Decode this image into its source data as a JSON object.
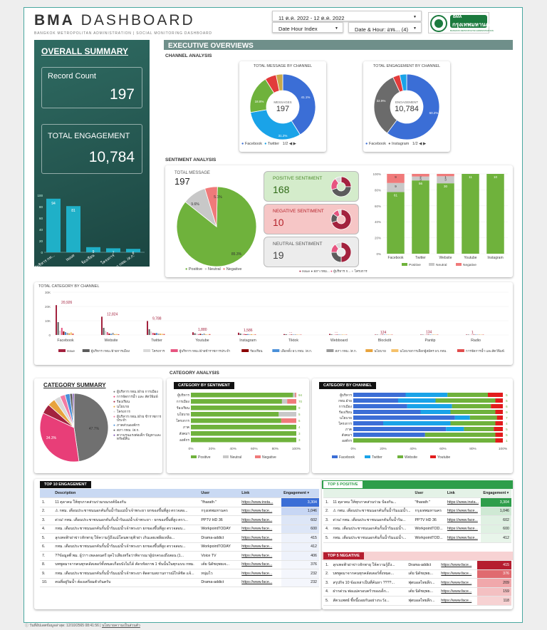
{
  "header": {
    "title_bold": "BMA",
    "title_rest": " DASHBOARD",
    "subtitle": "BANGKOK METROPOLITAN ADMINISTRATION | SOCIAL MONITORING DASHBOARD",
    "date_range": "11 ต.ค. 2022 - 12 ต.ค. 2022",
    "dropdown1": "Date Hour Index",
    "dropdown2": "Date & Hour: อทเ...",
    "dropdown2_count": "(4)",
    "logo_top": "BMA",
    "logo_main": "กรุงเทพมหานคร",
    "logo_sub": "BANGKOK METROPOLITAN ADMINISTRATION"
  },
  "summary": {
    "title": "OVERALL SUMMARY",
    "record_label": "Record Count",
    "record_value": "197",
    "eng_label": "TOTAL ENGAGEMENT",
    "eng_value": "10,784",
    "bars": [
      {
        "label": "ผู้บริหาร กท...",
        "value": 94
      },
      {
        "label": "Issue",
        "value": 81
      },
      {
        "label": "ร้องเรียน",
        "value": 9
      },
      {
        "label": "โครงการ",
        "value": 7
      },
      {
        "label": "สภา กทม. /ส.ก.",
        "value": 6
      }
    ]
  },
  "exec": {
    "title": "EXECUTIVE OVERVIEWS",
    "channel_label": "CHANNEL ANALYSIS",
    "sentiment_label": "SENTIMENT ANALYSIS",
    "category_label": "CATEGORY ANALYSIS"
  },
  "msg_donut": {
    "title": "TOTAL MESSAGE BY CHANNEL",
    "center_label": "MESSAGES",
    "center_value": "197",
    "slices": [
      {
        "name": "Facebook",
        "pct": 41.1,
        "color": "#3b6ed6"
      },
      {
        "name": "Twitter",
        "pct": 31.2,
        "color": "#1aa3e8"
      },
      {
        "name": "Website",
        "pct": 18.8,
        "color": "#6fb23c"
      },
      {
        "name": "Other1",
        "pct": 5.6,
        "color": "#e23b3b"
      },
      {
        "name": "Other2",
        "pct": 3.3,
        "color": "#c8a94a"
      }
    ],
    "labels": [
      "41.1%",
      "31.2%",
      "18.8%"
    ],
    "legend": [
      "Facebook",
      "Twitter"
    ],
    "pager": "1/2"
  },
  "eng_donut": {
    "title": "TOTAL ENGAGEMENT BY CHANNEL",
    "center_label": "ENGAGEMENT",
    "center_value": "10,784",
    "slices": [
      {
        "name": "Facebook",
        "pct": 60.2,
        "color": "#3b6ed6"
      },
      {
        "name": "Instagram",
        "pct": 32.9,
        "color": "#6b6b6b"
      },
      {
        "name": "Other1",
        "pct": 3.5,
        "color": "#e23b3b"
      },
      {
        "name": "Other2",
        "pct": 3.4,
        "color": "#1aa3e8"
      }
    ],
    "labels": [
      "60.2%",
      "32.9%"
    ],
    "legend": [
      "Facebook",
      "Instagram"
    ],
    "pager": "1/2"
  },
  "sentiment": {
    "total_label": "TOTAL MESSAGE",
    "total_value": "197",
    "pie": [
      {
        "name": "Positive",
        "pct": 85.3,
        "color": "#6fb23c"
      },
      {
        "name": "Neutral",
        "pct": 9.6,
        "color": "#c8c8c8"
      },
      {
        "name": "Negative",
        "pct": 5.1,
        "color": "#f07a7a"
      }
    ],
    "pie_labels": [
      "85.3%",
      "9.6%",
      "5.1%"
    ],
    "legend": [
      "Positive",
      "Neutral",
      "Negative"
    ],
    "positive_label": "POSITIVE SENTIMENT",
    "positive_value": "168",
    "negative_label": "NEGATIVE SENTIMENT",
    "negative_value": "10",
    "neutral_label": "NEUTRAL SENTIMENT",
    "neutral_value": "19",
    "mini_legend": [
      "Issue",
      "สภา กทม...",
      "ผู้บริหาร ก...",
      "โครงการ"
    ],
    "mini_colors": [
      "#a3223e",
      "#5c5c5c",
      "#e75480",
      "#d9d9d9"
    ]
  },
  "stacked_channel": {
    "categories": [
      "Facebook",
      "Twitter",
      "Website",
      "Youtube",
      "Instagram"
    ],
    "positive": [
      61,
      56,
      30,
      11,
      10
    ],
    "neutral": [
      9,
      3,
      3,
      0,
      0
    ],
    "negative": [
      9,
      2,
      1,
      0,
      0
    ],
    "yticks": [
      "100%",
      "80%",
      "60%",
      "40%",
      "20%",
      "0%"
    ],
    "legend": [
      "Positive",
      "Neutral",
      "Negative"
    ]
  },
  "total_category": {
    "title": "TOTAL CATEGORY BY CHANNEL",
    "yticks": [
      "30K",
      "20K",
      "10K",
      "0"
    ],
    "channels": [
      "Facebook",
      "Website",
      "Twitter",
      "Youtube",
      "Instagram",
      "Tiktok",
      "Webboard",
      "Blockdit",
      "Pantip",
      "Radio"
    ],
    "top_labels": [
      "20,926",
      "12,824",
      "9,788",
      "1,880",
      "1,586",
      "...",
      "...",
      "124",
      "134",
      "1"
    ],
    "legend": [
      {
        "name": "Issue",
        "color": "#a3223e"
      },
      {
        "name": "ผู้บริหาร กทม./ฝ่ายการเมือง",
        "color": "#5c5c5c"
      },
      {
        "name": "โครงการ",
        "color": "#d9d9d9"
      },
      {
        "name": "ผู้บริหาร กทม./ฝ่ายข้าราชการประจำ",
        "color": "#e75480"
      },
      {
        "name": "ร้องเรียน",
        "color": "#8b0000"
      },
      {
        "name": "เลือกตั้ง ผว.กทม. /ส.ก.",
        "color": "#4a90d9"
      },
      {
        "name": "สภา กทม. /ส.ก.",
        "color": "#999999"
      },
      {
        "name": "นโยบาย",
        "color": "#e8a33d"
      },
      {
        "name": "นโยบายการเลือกผู้สมัคร ผว.กทม.",
        "color": "#f5c16b"
      },
      {
        "name": "การจัดการน้ำ และสัตว์พิมพ์",
        "color": "#e14c4c"
      }
    ]
  },
  "category_summary": {
    "title": "CATEGORY SUMMARY",
    "pie": [
      {
        "name": "ผู้บริหาร กทม./ฝ่ายการเมือง",
        "pct": 47.7,
        "color": "#707070"
      },
      {
        "name": "การจัดการน้ำ และสัตว์พิมพ์",
        "pct": 34.3,
        "color": "#e83e78"
      },
      {
        "name": "ร้องเรียน",
        "pct": 4.6,
        "color": "#a3223e"
      },
      {
        "name": "นโยบาย",
        "pct": 3.6,
        "color": "#e8a33d"
      },
      {
        "name": "โครงการ",
        "pct": 3.0,
        "color": "#d9d9d9"
      },
      {
        "name": "ผู้บริหาร กทม./ฝ่ายข้าราชการประจำ",
        "pct": 2.5,
        "color": "#f27aa3"
      },
      {
        "name": "ภาคส่วนองค์กร",
        "pct": 2.3,
        "color": "#4a90d9"
      },
      {
        "name": "สภา กทม. /ส.ก.",
        "pct": 1.2,
        "color": "#555"
      },
      {
        "name": "ความรุนแรงในครอบครัว",
        "pct": 0.8,
        "color": "#7a4fb3"
      }
    ],
    "pie_labels": [
      "47.7%",
      "34.3%"
    ],
    "legend": [
      "ผู้บริหาร กทม./ฝ่าย การเมือง",
      "การจัดการน้ำ และ สัตว์พิมพ์",
      "ร้องเรียน",
      "นโยบาย",
      "โครงการ",
      "ผู้บริหาร กทม./ฝ่าย ข้าราชการประจำ",
      "ภาคส่วนองค์กร",
      "สภา กทม. /ส.ก.",
      "ความรุนแรงต่อเด็ก ปัญหาและทรัพย์สิน"
    ]
  },
  "cat_sentiment": {
    "title": "CATEGORY BY SENTIMENT",
    "cats": [
      "ผู้บริหาร",
      "การเมือง",
      "ร้องเรียน",
      "นโยบาย",
      "โครงการ",
      "ภาค",
      "สังคมฯ",
      "องค์กร"
    ],
    "positive": [
      94,
      70,
      9,
      5,
      6,
      4,
      3,
      3
    ],
    "neutral": [
      2,
      4,
      0,
      1,
      0,
      0,
      0,
      0
    ],
    "negative": [
      1,
      7,
      0,
      0,
      1,
      0,
      0,
      0
    ],
    "xticks": [
      "0%",
      "20%",
      "40%",
      "60%",
      "80%",
      "100%"
    ],
    "legend": [
      "Positive",
      "Neutral",
      "Negative"
    ]
  },
  "cat_channel": {
    "title": "CATEGORY BY CHANNEL",
    "cats": [
      "ผู้บริหาร",
      "กทม.ฝ่าย",
      "การเมือง",
      "ร้องเรียน",
      "นโยบาย",
      "โครงการ",
      "ภาค",
      "สังคมฯ",
      "องค์กร"
    ],
    "facebook": [
      35,
      30,
      36,
      45,
      68,
      20,
      62,
      48,
      0
    ],
    "twitter": [
      28,
      25,
      30,
      20,
      10,
      45,
      12,
      0,
      0
    ],
    "website": [
      27,
      40,
      26,
      30,
      18,
      30,
      20,
      47,
      95
    ],
    "youtube": [
      10,
      5,
      8,
      5,
      4,
      5,
      6,
      5,
      5
    ],
    "right_vals": [
      "5",
      "5",
      "6",
      "9",
      "7",
      "4",
      "5",
      "5",
      "1"
    ],
    "xticks": [
      "0%",
      "20%",
      "40%",
      "60%",
      "80%",
      "100%"
    ],
    "legend": [
      "Facebook",
      "Twitter",
      "Website",
      "Youtube"
    ]
  },
  "top10": {
    "badge": "TOP 10 ENGAGEMENT",
    "headers": [
      "Description",
      "User",
      "Link",
      "Engagement ▾"
    ],
    "rows": [
      {
        "n": "1.",
        "desc": "11 ตุลาคม ให้ทุกภาคส่วนร่วมรณรงค์ป้องกัน",
        "user": "\"fharath \"",
        "link": "https://www.insta...",
        "eng": "3,304",
        "shade": "#3b6ed6",
        "fg": "#fff"
      },
      {
        "n": "2.",
        "desc": "⚠ กทม. เตือนประชาชนนอกคันกั้นน้ำริมแม่น้ำเจ้าพระยา ยกของขึ้นที่สูง ตรวจสอ...",
        "user": "กรุงเทพมหานคร",
        "link": "https://www.face...",
        "eng": "1,046",
        "shade": "#c7d6f4",
        "fg": "#222"
      },
      {
        "n": "3.",
        "desc": "ด่วน! กทม. เตือนประชาชนนอกคันกั้นน้ำริมแม่น้ำเจ้าพระยา - ยกของขึ้นที่สูง ตรว...",
        "user": "PPTV HD 36",
        "link": "https://www.face...",
        "eng": "602",
        "shade": "#dde6f7",
        "fg": "#222"
      },
      {
        "n": "4.",
        "desc": "กทม. เตือนประชาชนนอกคันกั้นน้ำริมแม่น้ำเจ้าพระยา ยกของขึ้นที่สูง ตรวจสอบ...",
        "user": "WorkpointTODAY",
        "link": "https://www.face...",
        "eng": "600",
        "shade": "#dde6f7",
        "fg": "#222"
      },
      {
        "n": "5.",
        "desc": "ลุกเพจฟ้าผ่าข่าวหักพายุ ให้ความรู้ถึงแม้โดนพายุฟ้าผ่า เกินเลยเพลียเหลือ...",
        "user": "Drama-addict",
        "link": "https://www.face...",
        "eng": "415",
        "shade": "#eef2fb",
        "fg": "#222"
      },
      {
        "n": "6.",
        "desc": "กทม. เตือนประชาชนนอกคันกั้นน้ำริมแม่น้ำเจ้าพระยา ยกของขึ้นที่สูง ตรวจสอบ...",
        "user": "WorkpointTODAY",
        "link": "https://www.face...",
        "eng": "412",
        "shade": "#eef2fb",
        "fg": "#222"
      },
      {
        "n": "7.",
        "desc": "??ข้อมูลที่ พม. ผู้ว่าฯ เพลงดนตรี ยุคไวเสียงหรือว่าพิจารณาผู้ปกครองถึงสอน (1...",
        "user": "Voice TV",
        "link": "https://www.face...",
        "eng": "406",
        "shade": "#eef2fb",
        "fg": "#222"
      },
      {
        "n": "8.",
        "desc": "บทพูดมาจากคนทุกคลัสเตอร์ทั้งหมดเกือบบังไม่ได้ คัดรหัสภาพ 1 ชั่นนั้นในทุกแบบ กทม.",
        "user": "เต้ย นิดัชฤพยเจ...",
        "link": "https://www.face...",
        "eng": "376",
        "shade": "#f4f6fc",
        "fg": "#222"
      },
      {
        "n": "9.",
        "desc": "กทม. เตือนประชาชนนอกคันกั้นน้ำริมแม่น้ำเจ้าพระยา ติดตามสถานการณ์ใกล้ชิด แจ้...",
        "user": "หนุ่มไว",
        "link": "https://www.face...",
        "eng": "232",
        "shade": "#f4f6fc",
        "fg": "#222"
      },
      {
        "n": "10.",
        "desc": "คนที่อยู่ริมน้ำ ต้องเตรียมตัวกันครับ",
        "user": "Drama-addict",
        "link": "https://www.face...",
        "eng": "232",
        "shade": "#f4f6fc",
        "fg": "#222"
      }
    ]
  },
  "top5pos": {
    "badge": "TOP 5 POSITIVE",
    "headers": [
      "User",
      "Link",
      "Engagement ▾"
    ],
    "rows": [
      {
        "n": "1.",
        "desc": "11 ตุลาคม ให้ทุกภาคส่วนร่วม ป้องกัน...",
        "user": "\"fharath \"",
        "link": "https://www.insta...",
        "eng": "3,304",
        "shade": "#2e9e4a",
        "fg": "#fff"
      },
      {
        "n": "2.",
        "desc": "⚠ กทม. เตือนประชาชนนอกคันกั้นน้ำริมแม่น้ำ...",
        "user": "กรุงเทพมหานคร",
        "link": "https://www.face...",
        "eng": "1,046",
        "shade": "#cfe9d4",
        "fg": "#222"
      },
      {
        "n": "3.",
        "desc": "ด่วน! กทม. เตือนประชาชนนอกคันกั้นน้ำริม...",
        "user": "PPTV HD 36",
        "link": "https://www.face...",
        "eng": "602",
        "shade": "#e0f1e3",
        "fg": "#222"
      },
      {
        "n": "4.",
        "desc": "กทม. เตือนประชาชนนอกคันกั้นน้ำริมแม่น้ำ...",
        "user": "WorkpointTOD...",
        "link": "https://www.face...",
        "eng": "600",
        "shade": "#e0f1e3",
        "fg": "#222"
      },
      {
        "n": "5.",
        "desc": "กทม. เตือนประชาชนนอกคันกั้นน้ำริมแม่น้ำ...",
        "user": "WorkpointTOD...",
        "link": "https://www.face...",
        "eng": "412",
        "shade": "#e8f5ea",
        "fg": "#222"
      }
    ]
  },
  "top5neg": {
    "badge": "TOP 5 NEGATIVE",
    "rows": [
      {
        "n": "1.",
        "desc": "ลุกเพจฟ้าผ่าข่าวหักพายุ ให้ความรู้ถึง...",
        "user": "Drama-addict",
        "link": "https://www.face...",
        "eng": "415",
        "shade": "#b51d2f",
        "fg": "#fff"
      },
      {
        "n": "2.",
        "desc": "บทพูดมาจากคนทุกคลัสเตอร์ทั้งหมด...",
        "user": "เต้ย นิดัชฤพย...",
        "link": "https://www.face...",
        "eng": "376",
        "shade": "#e06a6f",
        "fg": "#fff"
      },
      {
        "n": "3.",
        "desc": "สรุปกิจ 10 ข้อเหล่าเป็นที่ค้นหา ????...",
        "user": "ฟุตบอลไทยลีก...",
        "link": "https://www.face...",
        "eng": "209",
        "shade": "#f0a8ab",
        "fg": "#222"
      },
      {
        "n": "4.",
        "desc": "ฝากด่วน พ่อแม่ครอบครัวของเด็ก...",
        "user": "เต้ย นิดัชฤพย...",
        "link": "https://www.face...",
        "eng": "159",
        "shade": "#f4c0c2",
        "fg": "#222"
      },
      {
        "n": "5.",
        "desc": "สัตวแพทย์ ชี้หนี้ถอยกันอย่างระวัง...",
        "user": "ฟุตบอลไทยลีก...",
        "link": "https://www.face...",
        "eng": "118",
        "shade": "#f7d2d3",
        "fg": "#222"
      }
    ]
  },
  "footer": {
    "updated": "วันที่อัปเดตข้อมูลล่าสุด: 12/10/2565 08:41:56",
    "privacy": "นโยบายความเป็นส่วนตัว"
  }
}
